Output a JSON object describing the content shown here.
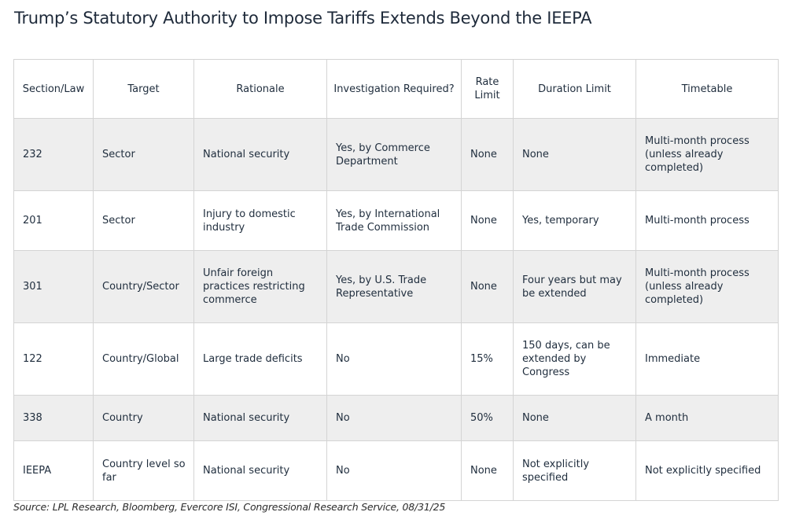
{
  "title": "Trump’s Statutory Authority to Impose Tariffs Extends Beyond the IEEPA",
  "columns": {
    "section": "Section/Law",
    "target": "Target",
    "rationale": "Rationale",
    "investigation": "Investigation Required?",
    "rate_limit": "Rate Limit",
    "duration": "Duration Limit",
    "timetable": "Timetable"
  },
  "rows": [
    {
      "section": "232",
      "target": "Sector",
      "rationale": "National security",
      "investigation": "Yes, by Commerce Department",
      "rate_limit": "None",
      "duration": "None",
      "timetable": "Multi-month process (unless already completed)"
    },
    {
      "section": "201",
      "target": "Sector",
      "rationale": "Injury to domestic industry",
      "investigation": "Yes, by International Trade Commission",
      "rate_limit": "None",
      "duration": "Yes, temporary",
      "timetable": "Multi-month process"
    },
    {
      "section": "301",
      "target": "Country/Sector",
      "rationale": "Unfair foreign practices restricting commerce",
      "investigation": "Yes, by U.S. Trade Representative",
      "rate_limit": "None",
      "duration": "Four years but may be extended",
      "timetable": "Multi-month process (unless already completed)"
    },
    {
      "section": "122",
      "target": "Country/Global",
      "rationale": "Large trade deficits",
      "investigation": "No",
      "rate_limit": "15%",
      "duration": "150 days, can be extended by Congress",
      "timetable": "Immediate"
    },
    {
      "section": "338",
      "target": "Country",
      "rationale": "National security",
      "investigation": "No",
      "rate_limit": "50%",
      "duration": "None",
      "timetable": "A month"
    },
    {
      "section": "IEEPA",
      "target": "Country level so far",
      "rationale": "National security",
      "investigation": "No",
      "rate_limit": "None",
      "duration": "Not explicitly specified",
      "timetable": "Not explicitly specified"
    }
  ],
  "source": "Source: LPL Research, Bloomberg, Evercore ISI, Congressional Research Service, 08/31/25"
}
